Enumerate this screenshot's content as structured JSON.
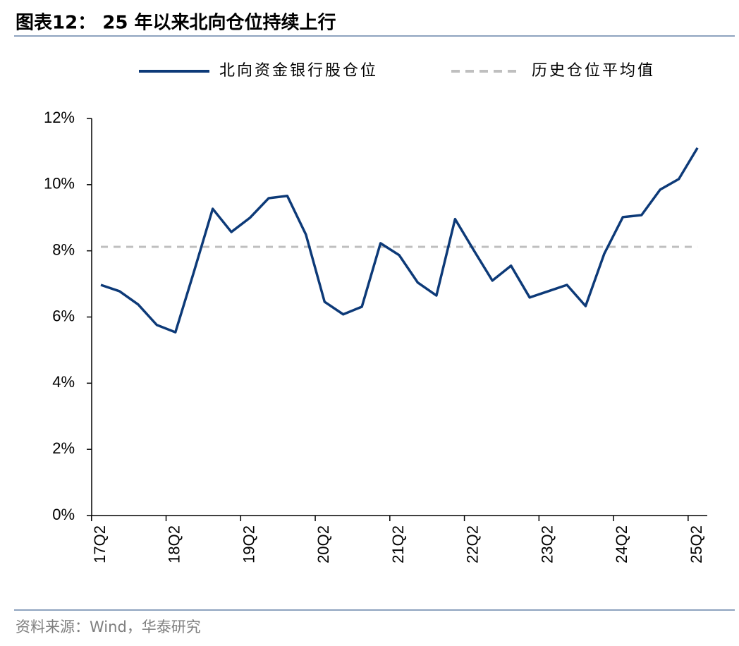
{
  "chart_data": {
    "type": "line",
    "title": "图表12：  25 年以来北向仓位持续上行",
    "source": "资料来源：Wind，华泰研究",
    "categories": [
      "17Q2",
      null,
      null,
      null,
      "18Q2",
      null,
      null,
      null,
      "19Q2",
      null,
      null,
      null,
      "20Q2",
      null,
      null,
      null,
      "21Q2",
      null,
      null,
      null,
      "22Q2",
      null,
      null,
      null,
      "23Q2",
      null,
      null,
      null,
      "24Q2",
      null,
      null,
      null,
      "25Q2"
    ],
    "series": [
      {
        "name": "北向资金银行股仓位",
        "color": "#0d3a78",
        "dash": false,
        "values": [
          6.97,
          6.78,
          6.38,
          5.76,
          5.54,
          7.38,
          9.27,
          8.57,
          9.0,
          9.59,
          9.66,
          8.49,
          6.46,
          6.08,
          6.31,
          8.23,
          7.87,
          7.04,
          6.65,
          8.96,
          8.02,
          7.1,
          7.55,
          6.59,
          6.78,
          6.97,
          6.33,
          7.91,
          9.02,
          9.08,
          9.85,
          10.17,
          11.11
        ]
      },
      {
        "name": "历史仓位平均值",
        "color": "#bfbfbf",
        "dash": true,
        "values": [
          8.12,
          8.12,
          8.12,
          8.12,
          8.12,
          8.12,
          8.12,
          8.12,
          8.12,
          8.12,
          8.12,
          8.12,
          8.12,
          8.12,
          8.12,
          8.12,
          8.12,
          8.12,
          8.12,
          8.12,
          8.12,
          8.12,
          8.12,
          8.12,
          8.12,
          8.12,
          8.12,
          8.12,
          8.12,
          8.12,
          8.12,
          8.12,
          8.12
        ]
      }
    ],
    "ylim": [
      0,
      12
    ],
    "yticks": [
      {
        "value": 0,
        "label": "0%"
      },
      {
        "value": 2,
        "label": "2%"
      },
      {
        "value": 4,
        "label": "4%"
      },
      {
        "value": 6,
        "label": "6%"
      },
      {
        "value": 8,
        "label": "8%"
      },
      {
        "value": 10,
        "label": "10%"
      },
      {
        "value": 12,
        "label": "12%"
      }
    ],
    "grid": false
  }
}
